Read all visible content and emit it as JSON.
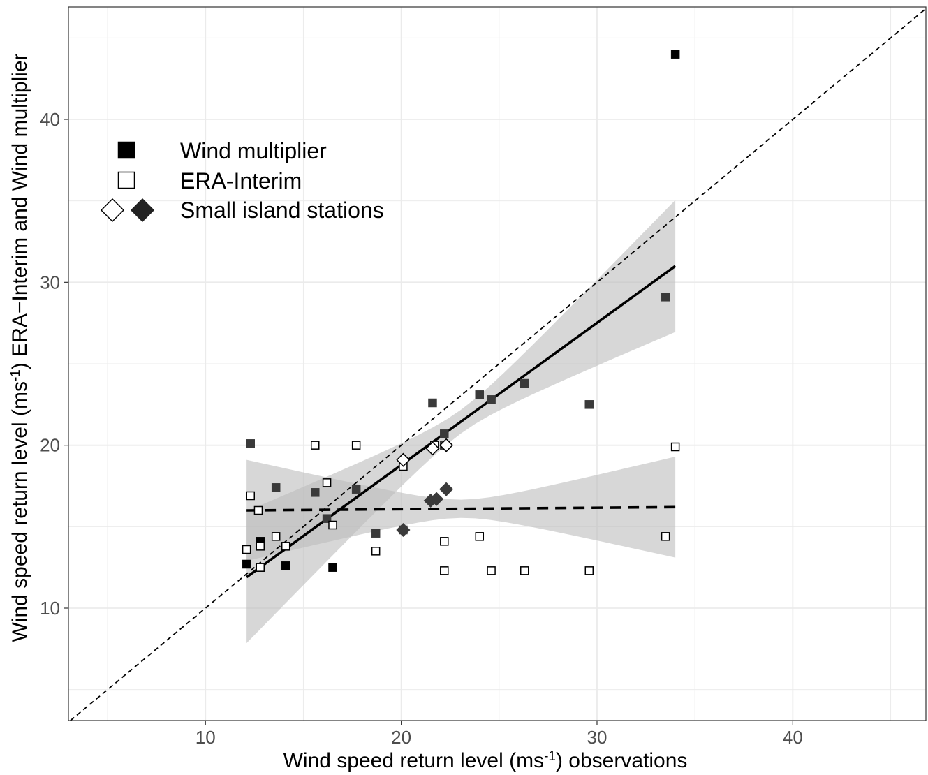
{
  "chart_data": {
    "type": "scatter",
    "xlabel": {
      "pre": "Wind speed return level (ms",
      "sup": "-1",
      "post": ") observations"
    },
    "ylabel": {
      "pre": "Wind speed return level (ms",
      "sup": "-1",
      "post": ") ERA−Interim and Wind multiplier"
    },
    "xlim": [
      3.0,
      46.8
    ],
    "ylim": [
      3.1,
      46.9
    ],
    "xticks": [
      10,
      20,
      30,
      40
    ],
    "yticks": [
      10,
      20,
      30,
      40
    ],
    "grid": true,
    "legend_position": "top-left",
    "legend": [
      {
        "label": "Wind multiplier",
        "symbol": "filled-square"
      },
      {
        "label": "ERA-Interim",
        "symbol": "open-square"
      },
      {
        "label": "Small island stations",
        "symbol": "diamond-pair"
      }
    ],
    "identity_line": {
      "style": "dashed"
    },
    "series": [
      {
        "name": "Wind multiplier",
        "marker": "filled-square",
        "points": [
          [
            12.1,
            12.7
          ],
          [
            12.3,
            20.1
          ],
          [
            12.8,
            12.5
          ],
          [
            12.8,
            14.1
          ],
          [
            13.6,
            17.4
          ],
          [
            14.1,
            12.6
          ],
          [
            15.6,
            17.1
          ],
          [
            16.2,
            15.5
          ],
          [
            16.5,
            12.5
          ],
          [
            17.7,
            17.3
          ],
          [
            18.7,
            14.6
          ],
          [
            20.1,
            14.8
          ],
          [
            21.6,
            22.6
          ],
          [
            22.2,
            20.7
          ],
          [
            22.2,
            20.0
          ],
          [
            24.0,
            23.1
          ],
          [
            24.6,
            22.8
          ],
          [
            26.3,
            23.8
          ],
          [
            29.6,
            22.5
          ],
          [
            33.5,
            29.1
          ],
          [
            34.0,
            44.0
          ]
        ]
      },
      {
        "name": "ERA-Interim",
        "marker": "open-square",
        "points": [
          [
            12.1,
            13.6
          ],
          [
            12.3,
            16.9
          ],
          [
            12.7,
            16.0
          ],
          [
            12.8,
            13.8
          ],
          [
            12.8,
            12.5
          ],
          [
            13.6,
            14.4
          ],
          [
            14.1,
            13.8
          ],
          [
            15.6,
            20.0
          ],
          [
            16.2,
            17.7
          ],
          [
            16.5,
            15.1
          ],
          [
            17.7,
            20.0
          ],
          [
            18.7,
            13.5
          ],
          [
            20.1,
            18.7
          ],
          [
            21.7,
            20.0
          ],
          [
            22.2,
            14.1
          ],
          [
            22.2,
            12.3
          ],
          [
            24.0,
            14.4
          ],
          [
            24.6,
            12.3
          ],
          [
            26.3,
            12.3
          ],
          [
            29.6,
            12.3
          ],
          [
            33.5,
            14.4
          ],
          [
            34.0,
            19.9
          ]
        ]
      },
      {
        "name": "Small island stations",
        "marker": "open-diamond",
        "points": [
          [
            20.1,
            19.1
          ],
          [
            21.6,
            19.8
          ],
          [
            22.3,
            20.0
          ]
        ]
      },
      {
        "name": "Small island stations",
        "marker": "filled-diamond",
        "points": [
          [
            20.1,
            14.8
          ],
          [
            21.5,
            16.6
          ],
          [
            21.8,
            16.7
          ],
          [
            22.3,
            17.3
          ]
        ]
      }
    ],
    "fits": [
      {
        "series": "Wind multiplier",
        "style": "solid",
        "x": [
          12.1,
          34.0
        ],
        "y": [
          11.9,
          31.0
        ],
        "ci_lower": [
          9.2,
          27.0
        ],
        "ci_upper": [
          14.4,
          35.1
        ]
      },
      {
        "series": "ERA-Interim",
        "style": "dashed",
        "x": [
          12.1,
          34.0
        ],
        "y": [
          16.0,
          16.2
        ],
        "ci_lower": [
          14.0,
          13.1
        ],
        "ci_upper": [
          18.0,
          19.3
        ]
      }
    ],
    "colors": {
      "marker_dark": "#000000",
      "marker_mid": "#3a3a3a",
      "ribbon": "#bdbdbd",
      "grid": "#ebebeb",
      "frame": "#333333",
      "tick_text": "#4d4d4d"
    }
  }
}
